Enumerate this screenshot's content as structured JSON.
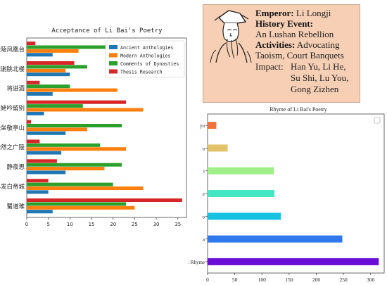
{
  "chart_data": [
    {
      "type": "bar",
      "orientation": "horizontal",
      "title": "Acceptance of Li Bai's Poetry",
      "categories": [
        "蜀道难",
        "早发白帝城",
        "静夜思",
        "浩然之广陵",
        "独坐敬亭山",
        "天姥吟留别",
        "将进酒",
        "城谢朓北楼",
        "金陵凤凰台"
      ],
      "series": [
        {
          "name": "Ancient Anthologies",
          "color": "#1f77b4",
          "values": [
            6,
            5,
            9,
            8,
            9,
            4,
            6,
            10,
            6
          ]
        },
        {
          "name": "Modern Anthologies",
          "color": "#ff7f0e",
          "values": [
            25,
            27,
            18,
            23,
            14,
            27,
            21,
            9,
            12
          ]
        },
        {
          "name": "Comments of Dynasties",
          "color": "#2ca02c",
          "values": [
            23,
            20,
            22,
            17,
            22,
            13,
            10,
            14,
            21
          ]
        },
        {
          "name": "Thesis Research",
          "color": "#d62728",
          "values": [
            36,
            5,
            7,
            3,
            1,
            23,
            3,
            11,
            2
          ]
        }
      ],
      "xticks": [
        0,
        5,
        10,
        15,
        20,
        25,
        30,
        35
      ],
      "xlim": [
        0,
        37
      ],
      "legend": "top-right"
    },
    {
      "type": "bar",
      "orientation": "horizontal",
      "title": "Rhyme of Li Bai's Poetry",
      "categories": [
        "Shift Rhyme",
        "a",
        "o",
        "e",
        "i",
        "u",
        "yu"
      ],
      "values": [
        315,
        248,
        135,
        123,
        122,
        37,
        16
      ],
      "colors": [
        "#6a0dd6",
        "#2f78ee",
        "#17c2e0",
        "#44e6c4",
        "#9ff089",
        "#e2c26a",
        "#f0713d"
      ],
      "xticks": [
        0,
        50,
        100,
        150,
        200,
        250,
        300
      ],
      "xlim": [
        0,
        325
      ]
    }
  ],
  "info_card": {
    "emperor_label": "Emperor:",
    "emperor_value": "Li Longji",
    "event_label": "History Event:",
    "event_value": "An Lushan Rebellion",
    "activities_label": "Activities:",
    "activities_value_1": "Advocating",
    "activities_value_2": "Taoism, Court Banquets",
    "impact_label": "Impact:",
    "impact_line_1": "Han Yu, Li He,",
    "impact_line_2": "Su Shi, Lu You,",
    "impact_line_3": "Gong Zizhen"
  }
}
